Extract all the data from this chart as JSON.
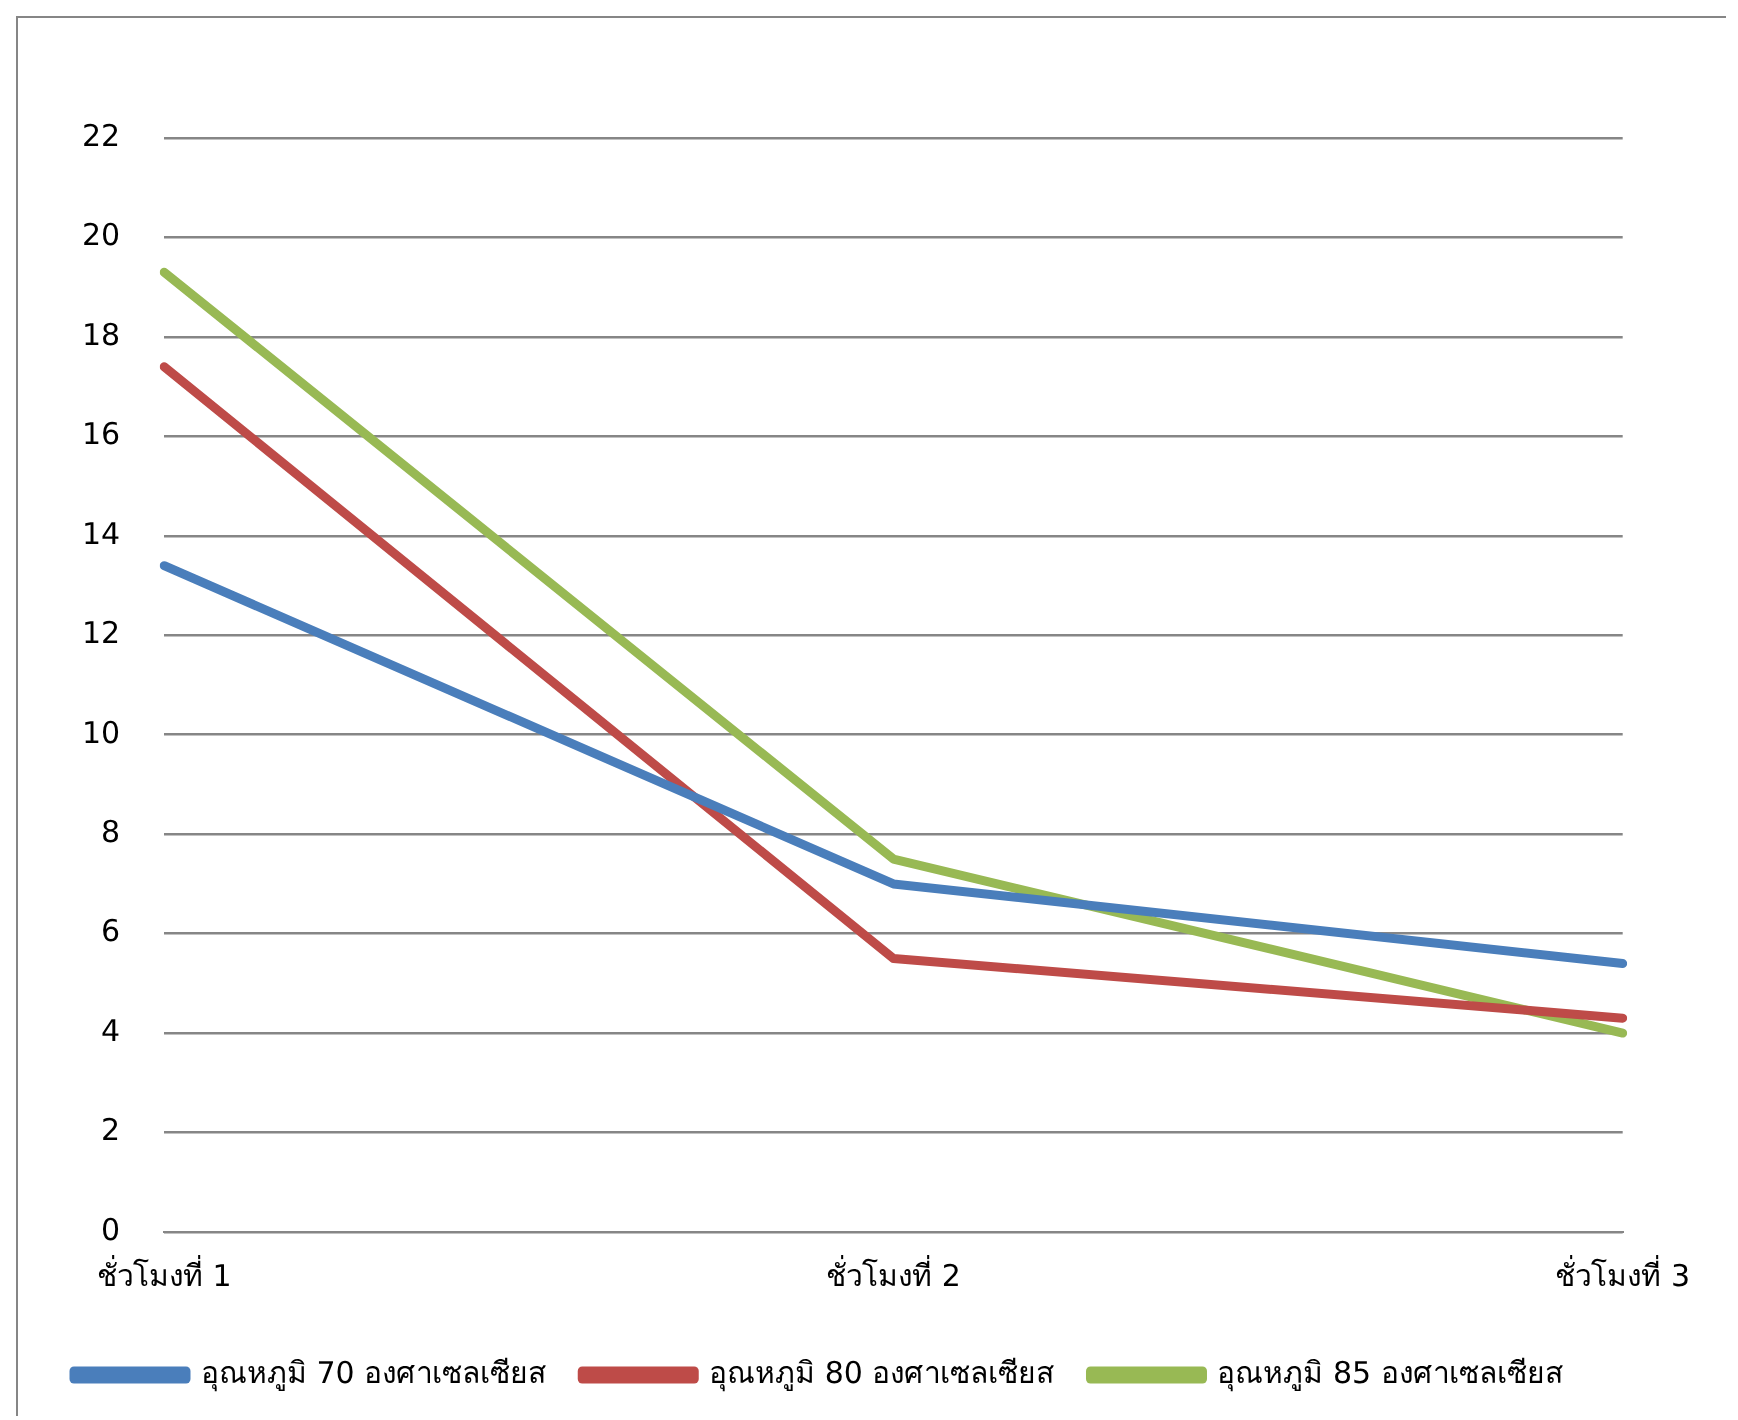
{
  "chart_data": {
    "type": "line",
    "categories": [
      "ชั่วโมงที่ 1",
      "ชั่วโมงที่ 2",
      "ชั่วโมงที่ 3"
    ],
    "series": [
      {
        "name": "อุณหภูมิ 70 องศาเซลเซียส",
        "color": "#4a7ebb",
        "values": [
          13.4,
          7.0,
          5.4
        ]
      },
      {
        "name": "อุณหภูมิ 80 องศาเซลเซียส",
        "color": "#be4b48",
        "values": [
          17.4,
          5.5,
          4.3
        ]
      },
      {
        "name": "อุณหภูมิ 85 องศาเซลเซียส",
        "color": "#98b954",
        "values": [
          19.3,
          7.5,
          4.0
        ]
      }
    ],
    "ylim": [
      0,
      22
    ],
    "yticks": [
      0,
      2,
      4,
      6,
      8,
      10,
      12,
      14,
      16,
      18,
      20,
      22
    ],
    "grid": "y",
    "legend": "bottom",
    "marker": "none",
    "line_style": "solid"
  }
}
